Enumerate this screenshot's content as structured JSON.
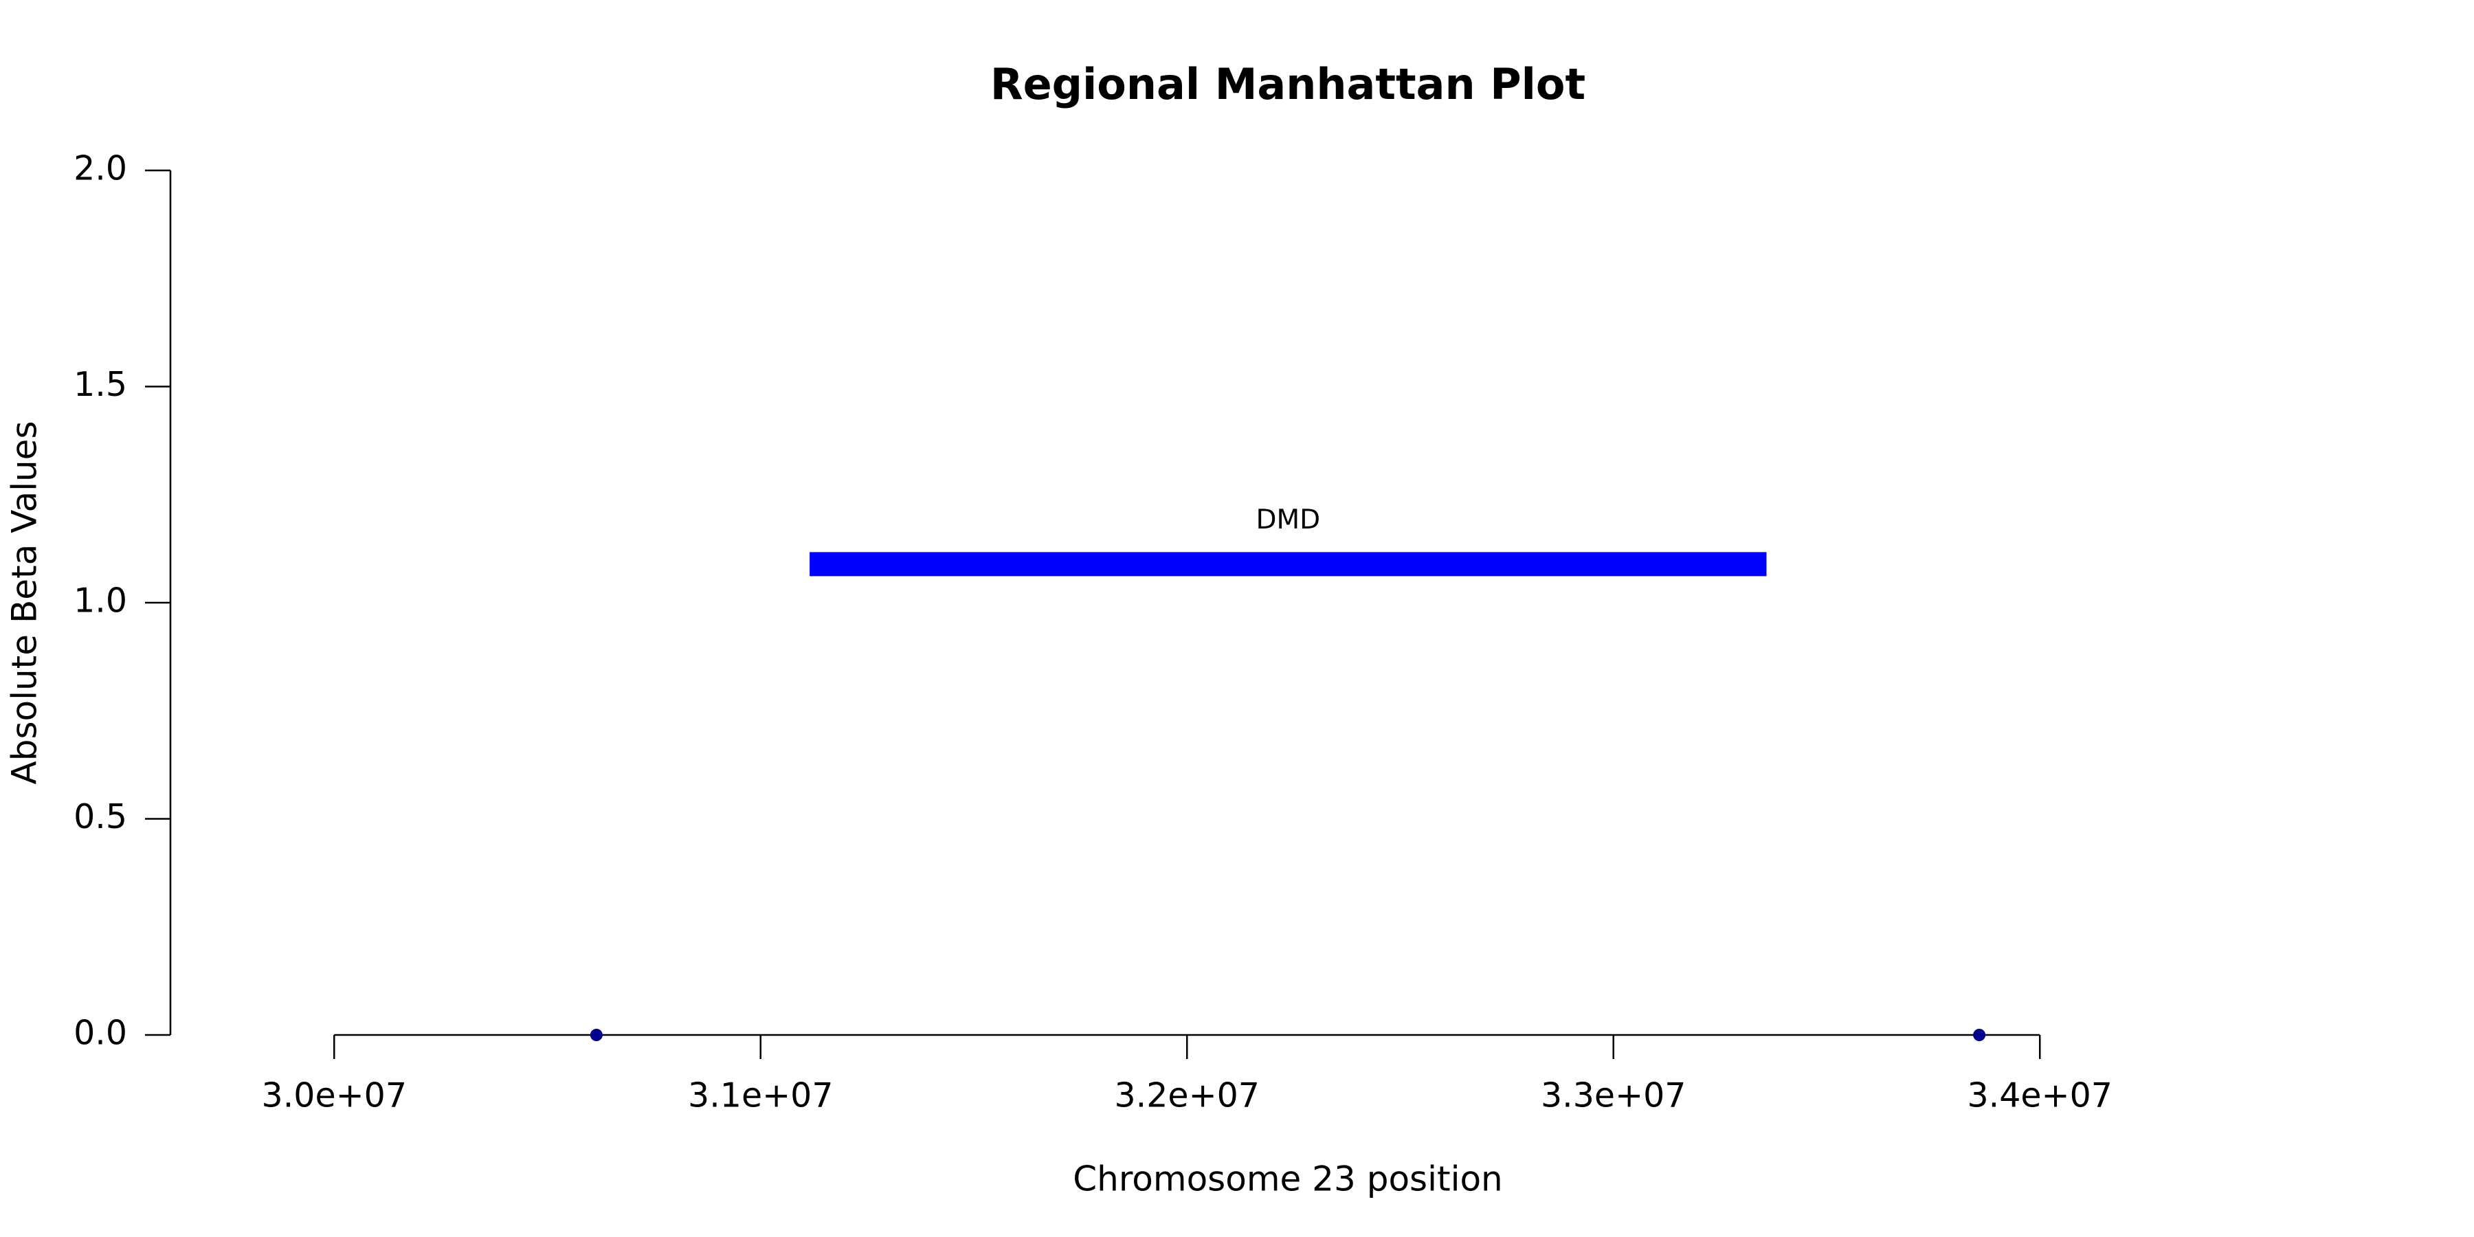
{
  "chart_data": {
    "type": "scatter",
    "title": "Regional Manhattan Plot",
    "x_label": "Chromosome 23 position",
    "y_label": "Absolute Beta Values",
    "x": [
      30615000,
      33858000
    ],
    "values": [
      0,
      0
    ],
    "color": "#00008b",
    "xlim": [
      29616000,
      34857000
    ],
    "xticks": [
      {
        "value": 30000000,
        "label": "3.0e+07"
      },
      {
        "value": 31000000,
        "label": "3.1e+07"
      },
      {
        "value": 32000000,
        "label": "3.2e+07"
      },
      {
        "value": 33000000,
        "label": "3.3e+07"
      },
      {
        "value": 34000000,
        "label": "3.4e+07"
      }
    ],
    "ylim": [
      0,
      2
    ],
    "yticks": [
      {
        "value": 0,
        "label": "0.0"
      },
      0.5,
      {
        "value": 1,
        "label": "1.0"
      },
      1.5,
      {
        "value": 2,
        "label": "2.0"
      }
    ],
    "grid": false,
    "genes": [
      {
        "name": "DMD",
        "start": 31115000,
        "end": 33359000,
        "y": 1.09,
        "color": "#0000ff"
      }
    ]
  }
}
